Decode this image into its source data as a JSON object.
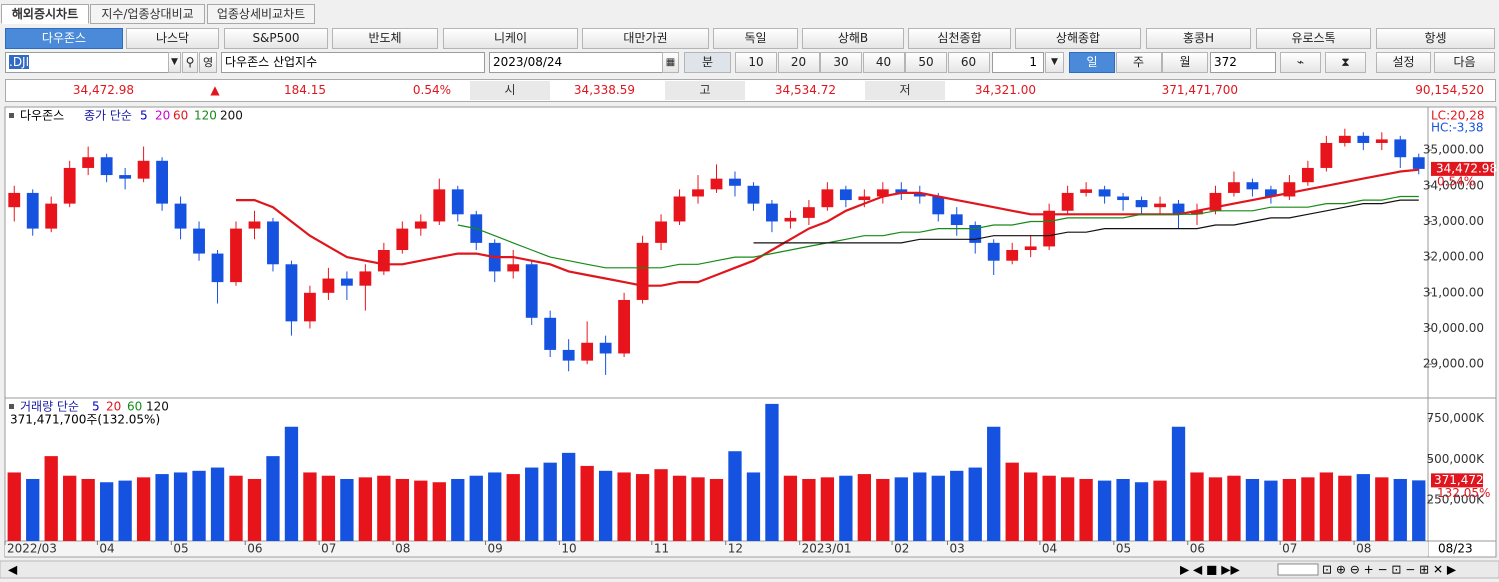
{
  "tabs": [
    "해외증시차트",
    "지수/업종상대비교",
    "업종상세비교차트"
  ],
  "markets": [
    "다우존스",
    "나스닥",
    "S&P500",
    "반도체",
    "니케이",
    "대만가권",
    "독일",
    "상해B",
    "심천종합",
    "상해종합",
    "홍콩H",
    "유로스톡",
    "항셍"
  ],
  "toolbar": {
    "code": ".DJI",
    "foreign": "영",
    "name": "다우존스 산업지수",
    "date": "2023/08/24",
    "minute": "분",
    "minute_options": [
      "10",
      "20",
      "30",
      "40",
      "50",
      "60"
    ],
    "step": "1",
    "periods": [
      "일",
      "주",
      "월"
    ],
    "count": "372",
    "settings": "설정",
    "next": "다음"
  },
  "quote": {
    "last": "34,472.98",
    "arrow": "▲",
    "change": "184.15",
    "change_pct": "0.54%",
    "open_label": "시",
    "open": "34,338.59",
    "high_label": "고",
    "high": "34,534.72",
    "low_label": "저",
    "low": "34,321.00",
    "volume": "371,471,700",
    "amount": "90,154,520"
  },
  "chart_data": {
    "type": "candlestick",
    "name": "다우존스",
    "ma_label": "종가 단순",
    "up_color": "#e8141b",
    "down_color": "#1652e0",
    "categories": [
      "2022/03",
      null,
      null,
      null,
      null,
      "04",
      null,
      null,
      null,
      "05",
      null,
      null,
      null,
      "06",
      null,
      null,
      null,
      "07",
      null,
      null,
      null,
      "08",
      null,
      null,
      null,
      null,
      "09",
      null,
      null,
      null,
      "10",
      null,
      null,
      null,
      null,
      "11",
      null,
      null,
      null,
      "12",
      null,
      null,
      null,
      "2023/01",
      null,
      null,
      null,
      null,
      "02",
      null,
      null,
      "03",
      null,
      null,
      null,
      null,
      "04",
      null,
      null,
      null,
      "05",
      null,
      null,
      null,
      "06",
      null,
      null,
      null,
      null,
      "07",
      null,
      null,
      null,
      "08",
      null,
      null,
      null
    ],
    "open": [
      33400,
      33800,
      32800,
      33500,
      34500,
      34800,
      34300,
      34200,
      34700,
      33500,
      32800,
      32100,
      31300,
      32800,
      33000,
      31800,
      30200,
      31000,
      31400,
      31200,
      31600,
      32200,
      32800,
      33000,
      33900,
      33200,
      32400,
      31600,
      31800,
      30300,
      29400,
      29100,
      29600,
      29300,
      30800,
      32400,
      33000,
      33700,
      33900,
      34200,
      34000,
      33500,
      33000,
      33100,
      33400,
      33900,
      33600,
      33700,
      33900,
      33800,
      33700,
      33200,
      32900,
      32400,
      31900,
      32200,
      32300,
      33300,
      33800,
      33900,
      33700,
      33600,
      33400,
      33500,
      33200,
      33300,
      33800,
      34100,
      33900,
      33700,
      34100,
      34500,
      35200,
      35400,
      35200,
      35300,
      34800
    ],
    "high": [
      34000,
      33900,
      33700,
      34700,
      35100,
      34900,
      34500,
      35100,
      34800,
      33700,
      33000,
      32200,
      33000,
      33300,
      33100,
      31900,
      31200,
      31700,
      31600,
      31800,
      32400,
      33000,
      33200,
      34200,
      34000,
      33300,
      32500,
      32200,
      31900,
      30500,
      29700,
      30200,
      29800,
      31000,
      32600,
      33200,
      33900,
      34300,
      34600,
      34400,
      34100,
      33600,
      33300,
      33600,
      34100,
      34000,
      33900,
      34100,
      34100,
      34000,
      33800,
      33400,
      33000,
      32500,
      32400,
      32600,
      33500,
      34000,
      34100,
      34000,
      33800,
      33700,
      33700,
      33600,
      33500,
      34000,
      34400,
      34200,
      34000,
      34300,
      34700,
      35400,
      35600,
      35500,
      35500,
      35400,
      34900
    ],
    "low": [
      33000,
      32600,
      32700,
      33400,
      34300,
      34100,
      33900,
      34100,
      33300,
      32500,
      31900,
      30700,
      31200,
      32500,
      31600,
      29800,
      30000,
      30800,
      30800,
      30500,
      31500,
      32100,
      32600,
      32900,
      33000,
      32200,
      31300,
      31400,
      30100,
      29200,
      28800,
      29000,
      28700,
      29200,
      30700,
      32200,
      32900,
      33500,
      33800,
      33700,
      33300,
      32700,
      32800,
      32900,
      33300,
      33400,
      33400,
      33500,
      33600,
      33500,
      33000,
      32600,
      32100,
      31500,
      31800,
      32000,
      32200,
      33200,
      33700,
      33500,
      33300,
      33200,
      33200,
      32800,
      32900,
      33200,
      33700,
      33700,
      33500,
      33600,
      34000,
      34400,
      35100,
      35000,
      35000,
      34500,
      34321
    ],
    "close": [
      33800,
      32800,
      33500,
      34500,
      34800,
      34300,
      34200,
      34700,
      33500,
      32800,
      32100,
      31300,
      32800,
      33000,
      31800,
      30200,
      31000,
      31400,
      31200,
      31600,
      32200,
      32800,
      33000,
      33900,
      33200,
      32400,
      31600,
      31800,
      30300,
      29400,
      29100,
      29600,
      29300,
      30800,
      32400,
      33000,
      33700,
      33900,
      34200,
      34000,
      33500,
      33000,
      33100,
      33400,
      33900,
      33600,
      33700,
      33900,
      33800,
      33700,
      33200,
      32900,
      32400,
      31900,
      32200,
      32300,
      33300,
      33800,
      33900,
      33700,
      33600,
      33400,
      33500,
      33200,
      33300,
      33800,
      34100,
      33900,
      33700,
      34100,
      34500,
      35200,
      35400,
      35200,
      35300,
      34800,
      34472.98
    ],
    "ylim": [
      28080,
      36180
    ],
    "yticks": [
      {
        "value": 29000,
        "label": "29,000.00"
      },
      {
        "value": 30000,
        "label": "30,000.00"
      },
      {
        "value": 31000,
        "label": "31,000.00"
      },
      {
        "value": 32000,
        "label": "32,000.00"
      },
      {
        "value": 33000,
        "label": "33,000.00"
      },
      {
        "value": 34000,
        "label": "34,000.00"
      },
      {
        "value": 35000,
        "label": "35,000.00"
      }
    ],
    "series": [
      {
        "name": "5",
        "color": "#0000c8"
      },
      {
        "name": "20",
        "color": "#d000d0"
      },
      {
        "name": "60",
        "color": "#e0161e",
        "values": [
          null,
          null,
          null,
          null,
          null,
          null,
          null,
          null,
          null,
          null,
          null,
          null,
          33600,
          33600,
          33400,
          33000,
          32600,
          32300,
          32000,
          31900,
          31800,
          31800,
          31900,
          32000,
          32100,
          32100,
          32000,
          32000,
          31900,
          31800,
          31600,
          31500,
          31400,
          31300,
          31200,
          31200,
          31300,
          31300,
          31500,
          31700,
          31900,
          32200,
          32500,
          32800,
          33000,
          33300,
          33500,
          33700,
          33800,
          33800,
          33700,
          33600,
          33500,
          33400,
          33300,
          33200,
          33200,
          33200,
          33200,
          33200,
          33200,
          33200,
          33200,
          33200,
          33300,
          33400,
          33500,
          33600,
          33700,
          33800,
          33900,
          34000,
          34100,
          34200,
          34300,
          34400,
          34450
        ]
      },
      {
        "name": "120",
        "color": "#178a17",
        "values": [
          null,
          null,
          null,
          null,
          null,
          null,
          null,
          null,
          null,
          null,
          null,
          null,
          null,
          null,
          null,
          null,
          null,
          null,
          null,
          null,
          null,
          null,
          null,
          null,
          32900,
          32800,
          32600,
          32400,
          32200,
          32000,
          31900,
          31800,
          31700,
          31700,
          31700,
          31700,
          31800,
          31800,
          31900,
          32000,
          32000,
          32100,
          32200,
          32300,
          32400,
          32500,
          32600,
          32600,
          32700,
          32700,
          32800,
          32800,
          32800,
          32900,
          32900,
          33000,
          33000,
          33100,
          33100,
          33100,
          33100,
          33200,
          33200,
          33200,
          33200,
          33300,
          33300,
          33300,
          33400,
          33400,
          33400,
          33500,
          33500,
          33600,
          33600,
          33700,
          33700
        ]
      },
      {
        "name": "200",
        "color": "#111111",
        "values": [
          null,
          null,
          null,
          null,
          null,
          null,
          null,
          null,
          null,
          null,
          null,
          null,
          null,
          null,
          null,
          null,
          null,
          null,
          null,
          null,
          null,
          null,
          null,
          null,
          null,
          null,
          null,
          null,
          null,
          null,
          null,
          null,
          null,
          null,
          null,
          null,
          null,
          null,
          null,
          null,
          32400,
          32400,
          32400,
          32400,
          32400,
          32400,
          32400,
          32400,
          32400,
          32500,
          32500,
          32500,
          32500,
          32600,
          32600,
          32600,
          32600,
          32700,
          32700,
          32800,
          32800,
          32800,
          32800,
          32800,
          32800,
          32900,
          32900,
          33000,
          33100,
          33100,
          33200,
          33300,
          33400,
          33500,
          33500,
          33600,
          33600
        ]
      }
    ],
    "lc_label": "LC:20,28",
    "hc_label": "HC:-3,38",
    "last_label": "34,472.98",
    "last_pct_label": "0.54%",
    "volume": {
      "title": "거래량 단순",
      "series": [
        {
          "name": "5",
          "color": "#0000c8"
        },
        {
          "name": "20",
          "color": "#e0161e"
        },
        {
          "name": "60",
          "color": "#178a17"
        },
        {
          "name": "120",
          "color": "#111111"
        }
      ],
      "info": "371,471,700주(132.05%)",
      "values": [
        420000,
        380000,
        520000,
        400000,
        380000,
        360000,
        370000,
        390000,
        410000,
        420000,
        430000,
        450000,
        400000,
        380000,
        520000,
        700000,
        420000,
        400000,
        380000,
        390000,
        400000,
        380000,
        370000,
        360000,
        380000,
        400000,
        420000,
        410000,
        450000,
        480000,
        540000,
        460000,
        430000,
        420000,
        410000,
        440000,
        400000,
        390000,
        380000,
        550000,
        420000,
        840000,
        400000,
        380000,
        390000,
        400000,
        410000,
        380000,
        390000,
        420000,
        400000,
        430000,
        450000,
        700000,
        480000,
        420000,
        400000,
        390000,
        380000,
        370000,
        380000,
        360000,
        370000,
        700000,
        420000,
        390000,
        400000,
        380000,
        370000,
        380000,
        390000,
        420000,
        400000,
        410000,
        390000,
        380000,
        371472
      ],
      "ylim": [
        0,
        870000
      ],
      "yticks": [
        {
          "value": 250000,
          "label": "250,000K"
        },
        {
          "value": 500000,
          "label": "500,000K"
        },
        {
          "value": 750000,
          "label": "750,000K"
        }
      ],
      "last_label": "371,472K",
      "last_pct_label": "132.05%"
    },
    "last_date_label": "08/23"
  }
}
